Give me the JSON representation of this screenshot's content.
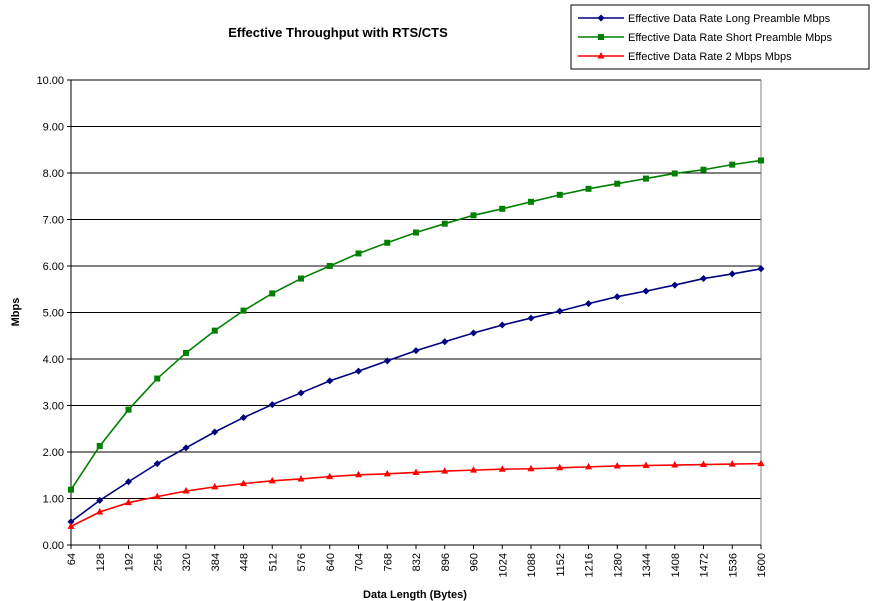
{
  "chart_data": {
    "type": "line",
    "title": "Effective Throughput with RTS/CTS",
    "xlabel": "Data Length (Bytes)",
    "ylabel": "Mbps",
    "x": [
      64,
      128,
      192,
      256,
      320,
      384,
      448,
      512,
      576,
      640,
      704,
      768,
      832,
      896,
      960,
      1024,
      1088,
      1152,
      1216,
      1280,
      1344,
      1408,
      1472,
      1536,
      1600
    ],
    "ylim": [
      0,
      10
    ],
    "yticks": [
      "0.00",
      "1.00",
      "2.00",
      "3.00",
      "4.00",
      "5.00",
      "6.00",
      "7.00",
      "8.00",
      "9.00",
      "10.00"
    ],
    "grid": "horizontal",
    "legend_position": "top-right",
    "series": [
      {
        "name": "Effective Data Rate Long Preamble Mbps",
        "color": "#000080",
        "marker": "diamond",
        "values": [
          0.5,
          0.96,
          1.36,
          1.75,
          2.09,
          2.43,
          2.74,
          3.02,
          3.27,
          3.53,
          3.74,
          3.96,
          4.18,
          4.37,
          4.56,
          4.73,
          4.88,
          5.03,
          5.19,
          5.34,
          5.46,
          5.59,
          5.73,
          5.83,
          5.94
        ]
      },
      {
        "name": "Effective Data Rate Short Preamble Mbps",
        "color": "#008000",
        "marker": "square",
        "values": [
          1.19,
          2.13,
          2.91,
          3.58,
          4.13,
          4.61,
          5.04,
          5.41,
          5.73,
          6.0,
          6.27,
          6.5,
          6.72,
          6.91,
          7.09,
          7.23,
          7.38,
          7.53,
          7.66,
          7.77,
          7.88,
          7.99,
          8.07,
          8.18,
          8.27
        ]
      },
      {
        "name": "Effective Data Rate 2 Mbps Mbps",
        "color": "#ff0000",
        "marker": "triangle",
        "values": [
          0.4,
          0.71,
          0.91,
          1.04,
          1.16,
          1.25,
          1.32,
          1.38,
          1.42,
          1.47,
          1.51,
          1.53,
          1.56,
          1.59,
          1.61,
          1.63,
          1.64,
          1.66,
          1.68,
          1.7,
          1.71,
          1.72,
          1.73,
          1.74,
          1.75
        ]
      }
    ]
  }
}
